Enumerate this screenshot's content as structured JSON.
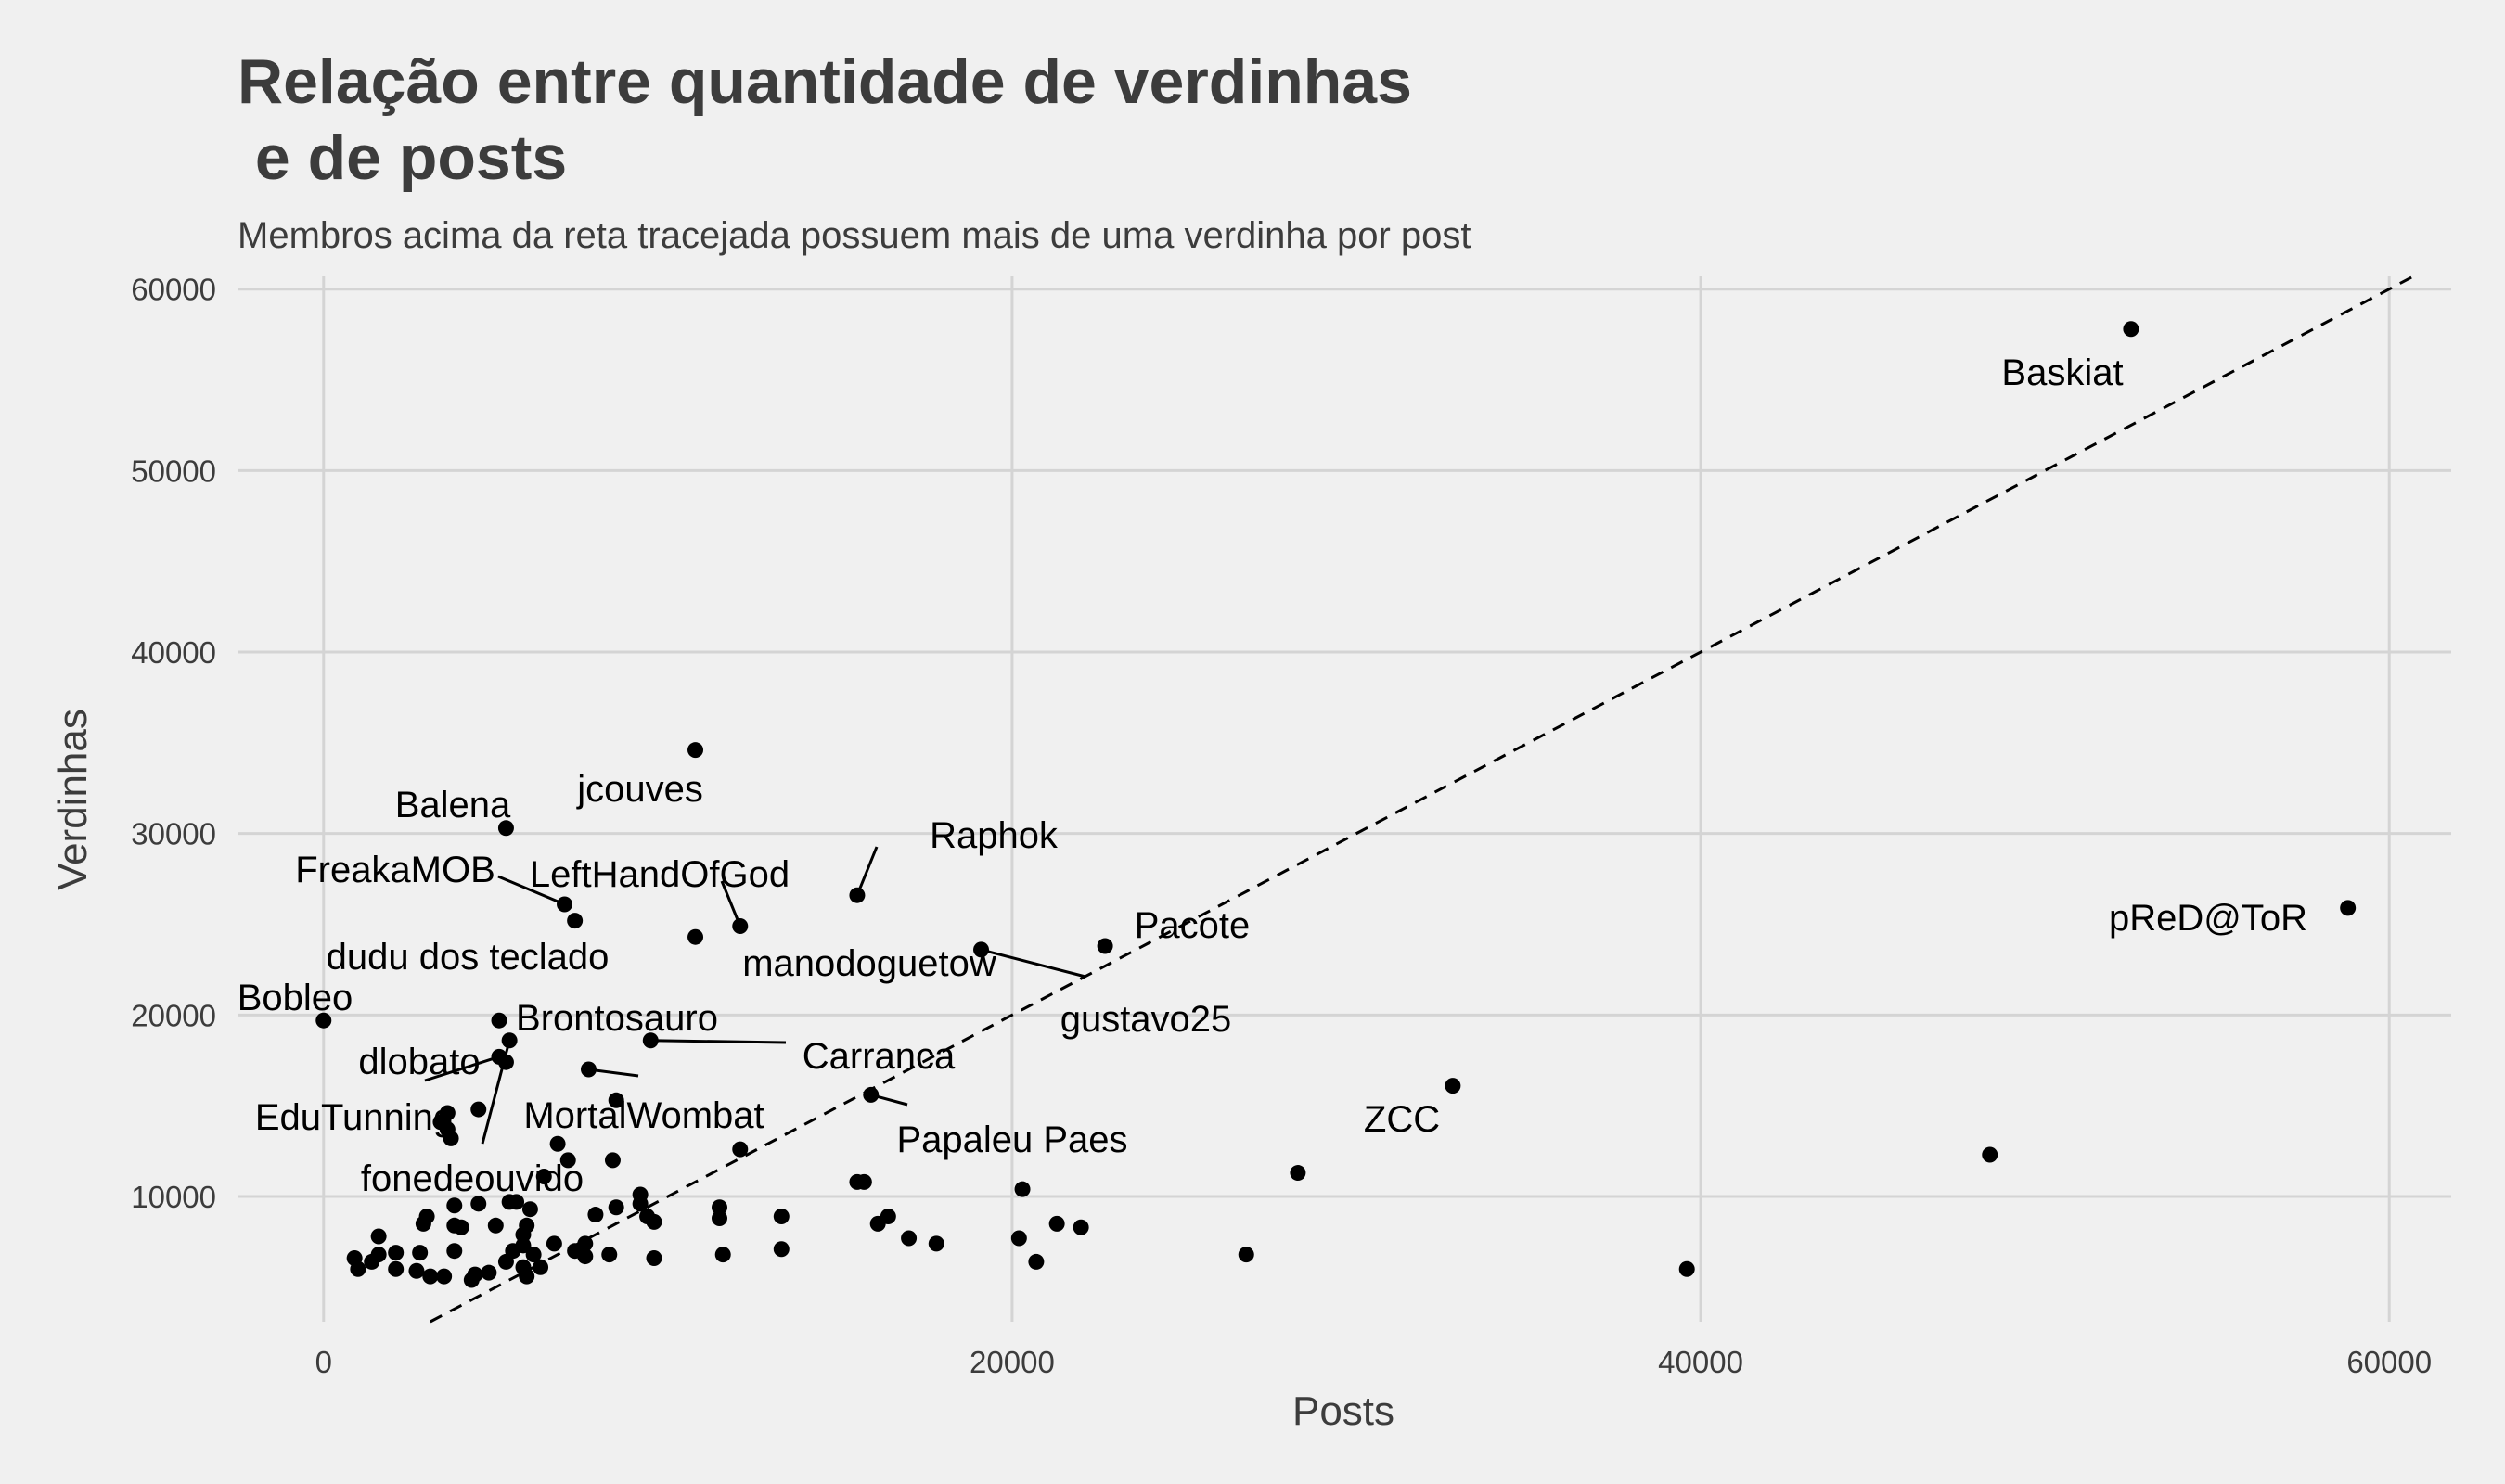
{
  "chart_data": {
    "type": "scatter",
    "title_lines": [
      "Relação entre quantidade de verdinhas",
      " e de posts"
    ],
    "subtitle": "Membros acima da reta tracejada possuem mais de uma verdinha por post",
    "xlabel": "Posts",
    "ylabel": "Verdinhas",
    "xlim": [
      -2500,
      61800
    ],
    "ylim": [
      3100,
      60700
    ],
    "x_ticks": [
      0,
      20000,
      40000,
      60000
    ],
    "y_ticks": [
      10000,
      20000,
      30000,
      40000,
      50000,
      60000
    ],
    "x_tick_labels": [
      "0",
      "20000",
      "40000",
      "60000"
    ],
    "y_tick_labels": [
      "10000",
      "20000",
      "30000",
      "40000",
      "50000",
      "60000"
    ],
    "reference_line": {
      "slope": 1,
      "intercept": 0,
      "style": "dashed"
    },
    "grid": true,
    "labeled_points": [
      {
        "name": "Baskiat",
        "x": 52500,
        "y": 57800
      },
      {
        "name": "pReD@ToR",
        "x": 58800,
        "y": 25900
      },
      {
        "name": "jcouves",
        "x": 10800,
        "y": 34600
      },
      {
        "name": "Balena",
        "x": 5300,
        "y": 30300
      },
      {
        "name": "FreakaMOB",
        "x": 7000,
        "y": 26100
      },
      {
        "name": "LeftHandOfGod",
        "x": 12100,
        "y": 24900
      },
      {
        "name": "Raphok",
        "x": 15500,
        "y": 26600
      },
      {
        "name": "Pacote",
        "x": 22700,
        "y": 23800
      },
      {
        "name": "manodoguetow",
        "x": 10800,
        "y": 24300
      },
      {
        "name": "gustavo25",
        "x": 19100,
        "y": 23600
      },
      {
        "name": "dudu dos teclado",
        "x": 7300,
        "y": 25200
      },
      {
        "name": "Bobleo",
        "x": 0,
        "y": 19700
      },
      {
        "name": "Brontosauro",
        "x": 5100,
        "y": 19700
      },
      {
        "name": "Carranca",
        "x": 9500,
        "y": 18600
      },
      {
        "name": "dlobato",
        "x": 5100,
        "y": 17700
      },
      {
        "name": "EduTunning",
        "x": 5300,
        "y": 17400
      },
      {
        "name": "fonedeouvido",
        "x": 5400,
        "y": 18600
      },
      {
        "name": "MortalWombat",
        "x": 7700,
        "y": 17000
      },
      {
        "name": "Papaleu Paes",
        "x": 15900,
        "y": 15600
      },
      {
        "name": "ZCC",
        "x": 32800,
        "y": 16100
      }
    ],
    "unlabeled_points": [
      {
        "x": 48400,
        "y": 12300
      },
      {
        "x": 39600,
        "y": 6000
      },
      {
        "x": 28300,
        "y": 11300
      },
      {
        "x": 26800,
        "y": 6800
      },
      {
        "x": 22000,
        "y": 8300
      },
      {
        "x": 21300,
        "y": 8500
      },
      {
        "x": 20700,
        "y": 6400
      },
      {
        "x": 20300,
        "y": 10400
      },
      {
        "x": 20200,
        "y": 7700
      },
      {
        "x": 17800,
        "y": 7400
      },
      {
        "x": 17000,
        "y": 7700
      },
      {
        "x": 16400,
        "y": 8900
      },
      {
        "x": 16100,
        "y": 8500
      },
      {
        "x": 15700,
        "y": 10800
      },
      {
        "x": 15500,
        "y": 10800
      },
      {
        "x": 13300,
        "y": 8900
      },
      {
        "x": 13300,
        "y": 7100
      },
      {
        "x": 12100,
        "y": 12600
      },
      {
        "x": 11500,
        "y": 9400
      },
      {
        "x": 11500,
        "y": 8800
      },
      {
        "x": 11600,
        "y": 6800
      },
      {
        "x": 9600,
        "y": 6600
      },
      {
        "x": 9600,
        "y": 8600
      },
      {
        "x": 9400,
        "y": 8900
      },
      {
        "x": 9200,
        "y": 10100
      },
      {
        "x": 9200,
        "y": 9600
      },
      {
        "x": 8500,
        "y": 15300
      },
      {
        "x": 8400,
        "y": 12000
      },
      {
        "x": 8500,
        "y": 9400
      },
      {
        "x": 8300,
        "y": 6800
      },
      {
        "x": 7900,
        "y": 9000
      },
      {
        "x": 7600,
        "y": 7400
      },
      {
        "x": 7600,
        "y": 6700
      },
      {
        "x": 7300,
        "y": 7000
      },
      {
        "x": 7100,
        "y": 12000
      },
      {
        "x": 6800,
        "y": 12900
      },
      {
        "x": 6700,
        "y": 7400
      },
      {
        "x": 6400,
        "y": 11100
      },
      {
        "x": 6300,
        "y": 6100
      },
      {
        "x": 6100,
        "y": 6800
      },
      {
        "x": 6000,
        "y": 9300
      },
      {
        "x": 5900,
        "y": 8400
      },
      {
        "x": 5800,
        "y": 7900
      },
      {
        "x": 5800,
        "y": 7300
      },
      {
        "x": 5800,
        "y": 6100
      },
      {
        "x": 5900,
        "y": 5600
      },
      {
        "x": 5600,
        "y": 9700
      },
      {
        "x": 5400,
        "y": 9700
      },
      {
        "x": 5500,
        "y": 7000
      },
      {
        "x": 5300,
        "y": 6400
      },
      {
        "x": 5000,
        "y": 8400
      },
      {
        "x": 4800,
        "y": 5800
      },
      {
        "x": 4500,
        "y": 14800
      },
      {
        "x": 4500,
        "y": 9600
      },
      {
        "x": 4400,
        "y": 5700
      },
      {
        "x": 4300,
        "y": 5400
      },
      {
        "x": 4000,
        "y": 8300
      },
      {
        "x": 3800,
        "y": 8400
      },
      {
        "x": 3800,
        "y": 9500
      },
      {
        "x": 3800,
        "y": 7000
      },
      {
        "x": 3700,
        "y": 13200
      },
      {
        "x": 3600,
        "y": 13700
      },
      {
        "x": 3600,
        "y": 14600
      },
      {
        "x": 3500,
        "y": 5600
      },
      {
        "x": 3400,
        "y": 14100
      },
      {
        "x": 3100,
        "y": 5600
      },
      {
        "x": 3000,
        "y": 8900
      },
      {
        "x": 2900,
        "y": 8500
      },
      {
        "x": 2800,
        "y": 6900
      },
      {
        "x": 2700,
        "y": 5900
      },
      {
        "x": 2100,
        "y": 6000
      },
      {
        "x": 2100,
        "y": 6900
      },
      {
        "x": 1600,
        "y": 6800
      },
      {
        "x": 1600,
        "y": 7800
      },
      {
        "x": 1400,
        "y": 6400
      },
      {
        "x": 1000,
        "y": 6000
      },
      {
        "x": 900,
        "y": 6600
      }
    ]
  }
}
